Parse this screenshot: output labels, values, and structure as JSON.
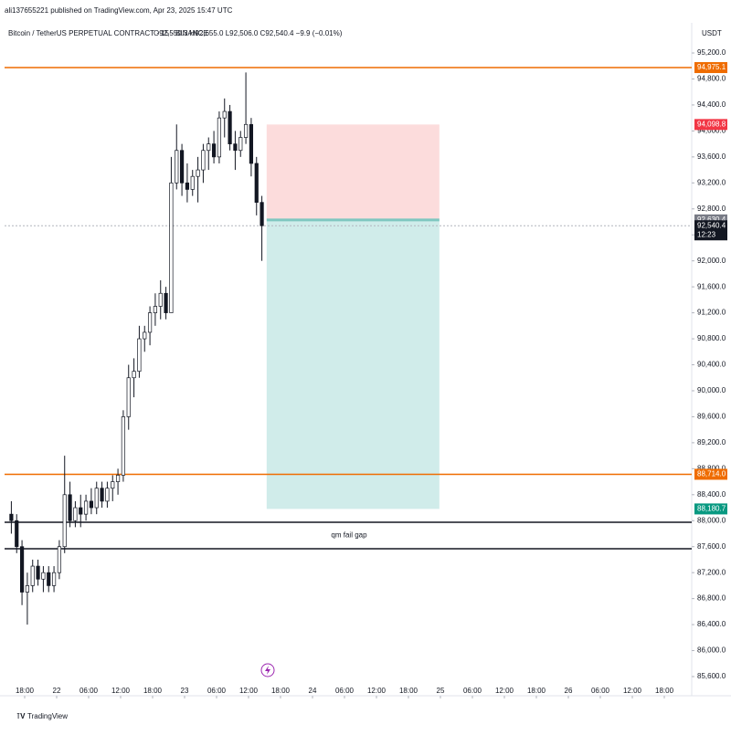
{
  "chart_data": {
    "type": "candlestick",
    "published": "ali137655221 published on TradingView.com, Apr 23, 2025 15:47 UTC",
    "symbol": "Bitcoin / TetherUS PERPETUAL CONTRACT · 15 · BINANCE",
    "ohlc_summary": "O92,550.3 H92,655.0 L92,506.0 C92,540.4 −9.9 (−0.01%)",
    "currency": "USDT",
    "footer": "TradingView",
    "up_color": "#ffffff",
    "down_color": "#131722",
    "x": [
      -2.5,
      -1.5,
      -0.5,
      0.5,
      1.5,
      2.5,
      3.5,
      4.5,
      5.5,
      6.5,
      7.5,
      8.5,
      9.5,
      10.5,
      11.5,
      12.5,
      13.5,
      14.5,
      15.5,
      16.5,
      17.5,
      18.5,
      19.5,
      20.5,
      21.5,
      22.5,
      23.5,
      24.5,
      25.5,
      26.5,
      27.5,
      28.5,
      29.5,
      30.5,
      31.5,
      32.5,
      33.5,
      34.5,
      35.5,
      36.5,
      37.5,
      38.5,
      39.5,
      40.5,
      41.5,
      42.5,
      43.5,
      44.5
    ],
    "open": [
      88100,
      88000,
      87600,
      86900,
      87000,
      87300,
      87100,
      87200,
      87000,
      87200,
      87600,
      88400,
      88000,
      88200,
      88100,
      88300,
      88200,
      88500,
      88300,
      88500,
      88600,
      88700,
      89600,
      90200,
      90300,
      90800,
      90900,
      91200,
      91300,
      91500,
      91200,
      93200,
      93700,
      93200,
      93100,
      93300,
      93400,
      93700,
      93800,
      93600,
      94200,
      94300,
      93800,
      93700,
      93900,
      94100,
      93500,
      92900
    ],
    "high": [
      88300,
      88100,
      87700,
      87200,
      87400,
      87400,
      87300,
      87300,
      87300,
      87700,
      89000,
      88600,
      88300,
      88400,
      88400,
      88500,
      88600,
      88600,
      88600,
      88700,
      88800,
      89700,
      90400,
      90500,
      91000,
      91000,
      91300,
      91500,
      91700,
      91600,
      93600,
      94100,
      93800,
      93500,
      93400,
      93600,
      93800,
      93900,
      94000,
      94300,
      94500,
      94400,
      94000,
      94000,
      94900,
      94200,
      93600,
      93000
    ],
    "low": [
      87800,
      87500,
      86700,
      86400,
      86900,
      87000,
      86900,
      86900,
      86900,
      87100,
      87500,
      87900,
      87900,
      87900,
      88000,
      88100,
      88100,
      88200,
      88200,
      88300,
      88400,
      88600,
      89400,
      89900,
      90200,
      90600,
      90700,
      91000,
      91100,
      91100,
      91200,
      93100,
      93000,
      92900,
      93000,
      92900,
      93200,
      93400,
      93500,
      93500,
      93900,
      93700,
      93400,
      93600,
      93800,
      93300,
      92700,
      92000
    ],
    "close": [
      88000,
      87600,
      86900,
      87000,
      87300,
      87100,
      87200,
      87000,
      87200,
      87600,
      88400,
      88000,
      88200,
      88100,
      88300,
      88200,
      88500,
      88300,
      88500,
      88600,
      88700,
      89600,
      90200,
      90300,
      90800,
      90900,
      91200,
      91300,
      91500,
      91200,
      93200,
      93700,
      93200,
      93100,
      93300,
      93400,
      93700,
      93800,
      93600,
      94200,
      94300,
      93800,
      93700,
      93900,
      94100,
      93500,
      92900,
      92540.4
    ],
    "xlim": [
      -3.77,
      125.14
    ],
    "xticks": [
      {
        "value": 0,
        "label": "18:00"
      },
      {
        "value": 6,
        "label": "22"
      },
      {
        "value": 12,
        "label": "06:00"
      },
      {
        "value": 18,
        "label": "12:00"
      },
      {
        "value": 24,
        "label": "18:00"
      },
      {
        "value": 30,
        "label": "23"
      },
      {
        "value": 36,
        "label": "06:00"
      },
      {
        "value": 42,
        "label": "12:00"
      },
      {
        "value": 48,
        "label": "18:00"
      },
      {
        "value": 54,
        "label": "24"
      },
      {
        "value": 60,
        "label": "06:00"
      },
      {
        "value": 66,
        "label": "12:00"
      },
      {
        "value": 72,
        "label": "18:00"
      },
      {
        "value": 78,
        "label": "25"
      },
      {
        "value": 84,
        "label": "06:00"
      },
      {
        "value": 90,
        "label": "12:00"
      },
      {
        "value": 96,
        "label": "18:00"
      },
      {
        "value": 102,
        "label": "26"
      },
      {
        "value": 108,
        "label": "06:00"
      },
      {
        "value": 114,
        "label": "12:00"
      },
      {
        "value": 120,
        "label": "18:00"
      }
    ],
    "ylim": [
      85333,
      95594
    ],
    "yticks": [
      {
        "value": 95200,
        "label": "95,200.0"
      },
      {
        "value": 94800,
        "label": "94,800.0"
      },
      {
        "value": 94400,
        "label": "94,400.0"
      },
      {
        "value": 94000,
        "label": "94,000.0"
      },
      {
        "value": 93600,
        "label": "93,600.0"
      },
      {
        "value": 93200,
        "label": "93,200.0"
      },
      {
        "value": 92800,
        "label": "92,800.0"
      },
      {
        "value": 92400,
        "label": "92,400.0"
      },
      {
        "value": 92000,
        "label": "92,000.0"
      },
      {
        "value": 91600,
        "label": "91,600.0"
      },
      {
        "value": 91200,
        "label": "91,200.0"
      },
      {
        "value": 90800,
        "label": "90,800.0"
      },
      {
        "value": 90400,
        "label": "90,400.0"
      },
      {
        "value": 90000,
        "label": "90,000.0"
      },
      {
        "value": 89600,
        "label": "89,600.0"
      },
      {
        "value": 89200,
        "label": "89,200.0"
      },
      {
        "value": 88800,
        "label": "88,800.0"
      },
      {
        "value": 88400,
        "label": "88,400.0"
      },
      {
        "value": 88000,
        "label": "88,000.0"
      },
      {
        "value": 87600,
        "label": "87,600.0"
      },
      {
        "value": 87200,
        "label": "87,200.0"
      },
      {
        "value": 86800,
        "label": "86,800.0"
      },
      {
        "value": 86400,
        "label": "86,400.0"
      },
      {
        "value": 86000,
        "label": "86,000.0"
      },
      {
        "value": 85600,
        "label": "85,600.0"
      }
    ],
    "position": {
      "x_start": 45.4,
      "x_end": 77.8,
      "entry": 92630.4,
      "entry_label": "92,630.4",
      "stop": 94098.8,
      "stop_label": "94,098.8",
      "target": 88180.7,
      "target_label": "88,180.7",
      "stop_color": "#fcdcdc",
      "target_color": "#d0ecea"
    },
    "levels": [
      {
        "value": 94975.1,
        "label": "94,975.1",
        "color": "#ef6c00"
      },
      {
        "value": 88714.0,
        "label": "88,714.0",
        "color": "#ef6c00"
      },
      {
        "value": 87975,
        "color": "#131722"
      },
      {
        "value": 87568,
        "color": "#131722"
      }
    ],
    "last_price": 92540.4,
    "last_label": "92,540.4",
    "countdown": "12:23",
    "annotation": "qm fail gap"
  }
}
